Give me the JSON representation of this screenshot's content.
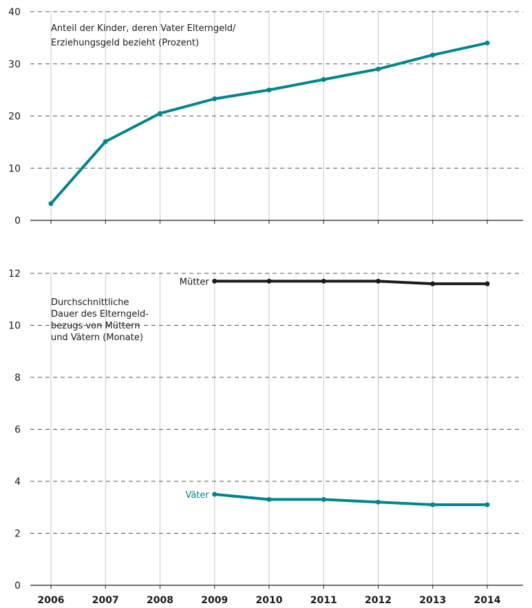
{
  "chart_data": [
    {
      "type": "line",
      "title_lines": [
        "Anteil der Kinder, deren Vater Elterngeld/",
        "Erziehungsgeld bezieht (Prozent)"
      ],
      "x": [
        "2006",
        "2007",
        "2008",
        "2009",
        "2010",
        "2011",
        "2012",
        "2013",
        "2014"
      ],
      "ylim": [
        0,
        40
      ],
      "yticks": [
        "0",
        "10",
        "20",
        "30",
        "40"
      ],
      "grid": true,
      "series": [
        {
          "values": [
            3.2,
            15.1,
            20.5,
            23.3,
            25.0,
            27.0,
            29.0,
            31.7,
            34.0
          ],
          "color": "#00858a"
        }
      ]
    },
    {
      "type": "line",
      "title_lines": [
        "Durchschnittliche",
        "Dauer des Elterngeld-",
        "bezugs von Müttern",
        "und Vätern (Monate)"
      ],
      "x": [
        "2006",
        "2007",
        "2008",
        "2009",
        "2010",
        "2011",
        "2012",
        "2013",
        "2014"
      ],
      "ylim": [
        0,
        12
      ],
      "yticks": [
        "0",
        "2",
        "4",
        "6",
        "8",
        "10",
        "12"
      ],
      "grid": true,
      "series": [
        {
          "name": "Mütter",
          "x": [
            "2009",
            "2010",
            "2011",
            "2012",
            "2013",
            "2014"
          ],
          "values": [
            11.7,
            11.7,
            11.7,
            11.7,
            11.6,
            11.6
          ],
          "color": "#1a1a1a"
        },
        {
          "name": "Väter",
          "x": [
            "2009",
            "2010",
            "2011",
            "2012",
            "2013",
            "2014"
          ],
          "values": [
            3.5,
            3.3,
            3.3,
            3.2,
            3.1,
            3.1
          ],
          "color": "#00858a"
        }
      ]
    }
  ],
  "colors": {
    "grid": "#555555",
    "vgrid": "#c8c8c8",
    "axis": "#1a1a1a"
  }
}
